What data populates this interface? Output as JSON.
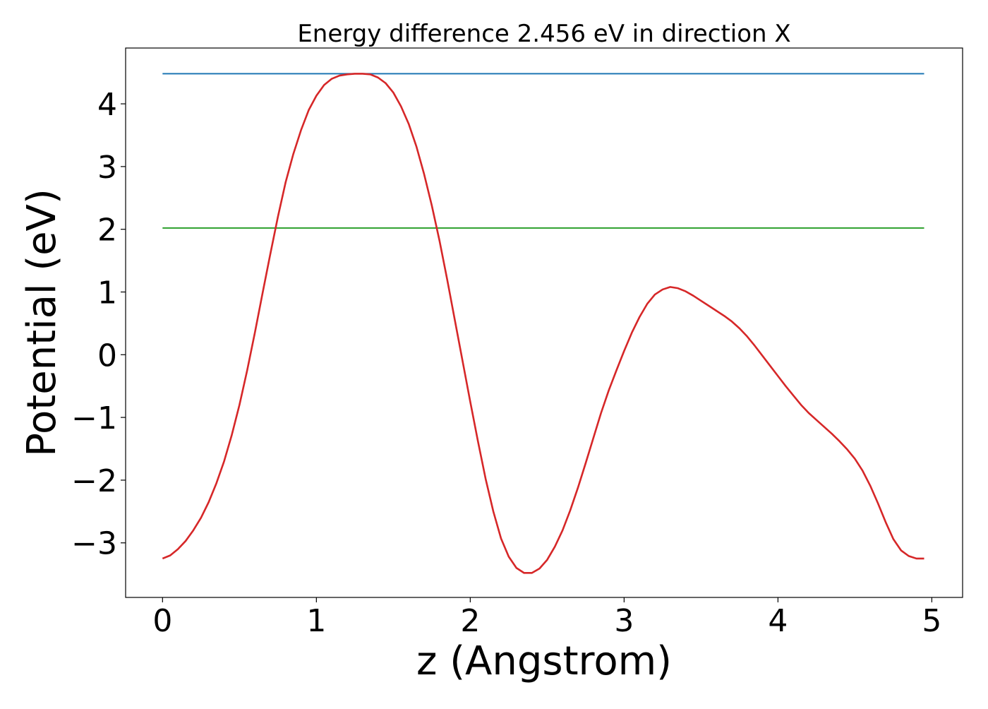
{
  "chart_data": {
    "type": "line",
    "title": "Energy difference 2.456 eV in direction X",
    "xlabel": "z (Angstrom)",
    "ylabel": "Potential (eV)",
    "xlim": [
      -0.24,
      5.2
    ],
    "ylim": [
      -3.87,
      4.89
    ],
    "xticks": [
      0,
      1,
      2,
      3,
      4,
      5
    ],
    "xtick_labels": [
      "0",
      "1",
      "2",
      "3",
      "4",
      "5"
    ],
    "yticks": [
      -3,
      -2,
      -1,
      0,
      1,
      2,
      3,
      4
    ],
    "ytick_labels": [
      "−3",
      "−2",
      "−1",
      "0",
      "1",
      "2",
      "3",
      "4"
    ],
    "grid": false,
    "legend": "none",
    "series": [
      {
        "color": "#1f77b4",
        "x": [
          0,
          4.95
        ],
        "y": [
          4.48,
          4.48
        ]
      },
      {
        "color": "#2ca02c",
        "x": [
          0,
          4.95
        ],
        "y": [
          2.02,
          2.02
        ]
      },
      {
        "color": "#d62728",
        "x": [
          0,
          0.05,
          0.1,
          0.15,
          0.2,
          0.25,
          0.3,
          0.35,
          0.4,
          0.45,
          0.5,
          0.55,
          0.6,
          0.65,
          0.7,
          0.75,
          0.8,
          0.85,
          0.9,
          0.95,
          1.0,
          1.05,
          1.1,
          1.15,
          1.2,
          1.25,
          1.3,
          1.35,
          1.4,
          1.45,
          1.5,
          1.55,
          1.6,
          1.65,
          1.7,
          1.75,
          1.8,
          1.85,
          1.9,
          1.95,
          2.0,
          2.05,
          2.1,
          2.15,
          2.2,
          2.25,
          2.3,
          2.35,
          2.4,
          2.45,
          2.5,
          2.55,
          2.6,
          2.65,
          2.7,
          2.75,
          2.8,
          2.85,
          2.9,
          2.95,
          3.0,
          3.05,
          3.1,
          3.15,
          3.2,
          3.25,
          3.3,
          3.35,
          3.4,
          3.45,
          3.5,
          3.55,
          3.6,
          3.65,
          3.7,
          3.75,
          3.8,
          3.85,
          3.9,
          3.95,
          4.0,
          4.05,
          4.1,
          4.15,
          4.2,
          4.25,
          4.3,
          4.35,
          4.4,
          4.45,
          4.5,
          4.55,
          4.6,
          4.65,
          4.7,
          4.75,
          4.8,
          4.85,
          4.9,
          4.95
        ],
        "y": [
          -3.25,
          -3.2,
          -3.1,
          -2.97,
          -2.8,
          -2.6,
          -2.35,
          -2.05,
          -1.7,
          -1.28,
          -0.8,
          -0.25,
          0.35,
          0.98,
          1.6,
          2.2,
          2.75,
          3.2,
          3.58,
          3.9,
          4.13,
          4.3,
          4.4,
          4.45,
          4.47,
          4.48,
          4.48,
          4.47,
          4.42,
          4.33,
          4.18,
          3.96,
          3.68,
          3.32,
          2.88,
          2.38,
          1.82,
          1.2,
          0.55,
          -0.1,
          -0.75,
          -1.38,
          -1.98,
          -2.5,
          -2.93,
          -3.22,
          -3.4,
          -3.48,
          -3.48,
          -3.41,
          -3.27,
          -3.06,
          -2.8,
          -2.48,
          -2.12,
          -1.73,
          -1.33,
          -0.93,
          -0.57,
          -0.25,
          0.06,
          0.35,
          0.6,
          0.81,
          0.96,
          1.04,
          1.08,
          1.06,
          1.01,
          0.94,
          0.86,
          0.78,
          0.7,
          0.62,
          0.53,
          0.42,
          0.29,
          0.14,
          -0.02,
          -0.18,
          -0.34,
          -0.5,
          -0.65,
          -0.8,
          -0.93,
          -1.04,
          -1.15,
          -1.26,
          -1.38,
          -1.51,
          -1.66,
          -1.85,
          -2.09,
          -2.37,
          -2.67,
          -2.94,
          -3.12,
          -3.21,
          -3.25,
          -3.25
        ]
      }
    ]
  }
}
